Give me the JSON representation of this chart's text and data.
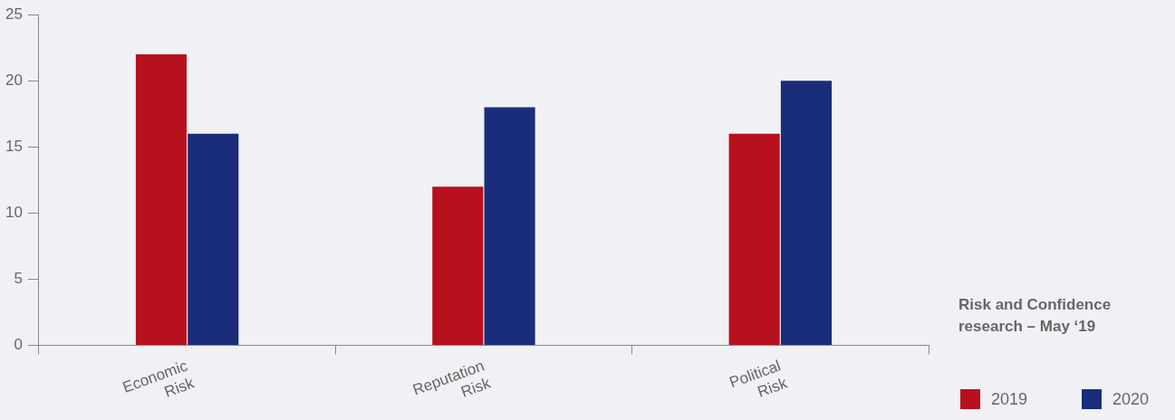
{
  "chart_data": {
    "type": "bar",
    "categories": [
      "Economic Risk",
      "Reputation Risk",
      "Political Risk"
    ],
    "series": [
      {
        "name": "2019",
        "color": "#b8111e",
        "values": [
          22,
          12,
          16
        ]
      },
      {
        "name": "2020",
        "color": "#1a2d7a",
        "values": [
          16,
          18,
          20
        ]
      }
    ],
    "ylim": [
      0,
      25
    ],
    "yticks": [
      0,
      5,
      10,
      15,
      20,
      25
    ],
    "grid": false,
    "legend": "bottom right",
    "annotations": [
      "Risk and Confidence research – May ‘19"
    ]
  }
}
